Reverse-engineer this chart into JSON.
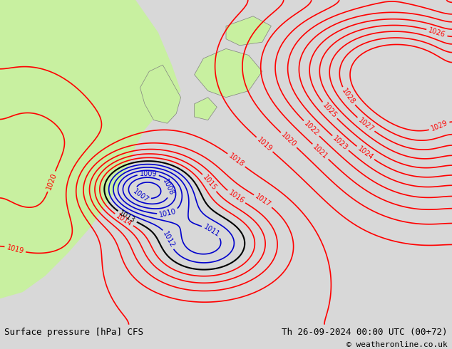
{
  "title_left": "Surface pressure [hPa] CFS",
  "title_right": "Th 26-09-2024 00:00 UTC (00+72)",
  "copyright": "© weatheronline.co.uk",
  "bg_color": "#d8d8d8",
  "green_color": "#c8f0a0",
  "text_color": "#000000",
  "red_color": "#ff0000",
  "blue_color": "#0000cc",
  "black_color": "#000000",
  "bottom_bar_color": "#ffffff",
  "figsize": [
    6.34,
    4.9
  ],
  "dpi": 100
}
